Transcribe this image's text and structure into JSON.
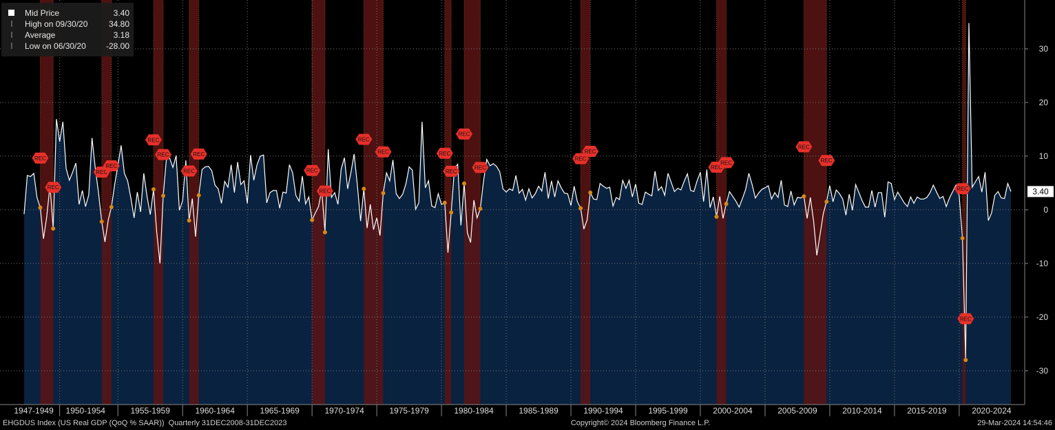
{
  "chart_data": {
    "type": "line",
    "legend": [
      {
        "label": "Mid Price",
        "value": "3.40"
      },
      {
        "label": "High on 09/30/20",
        "value": "34.80"
      },
      {
        "label": "Average",
        "value": "3.18"
      },
      {
        "label": "Low on 06/30/20",
        "value": "-28.00"
      }
    ],
    "footer_left": "EHGDUS Index (US Real GDP (QoQ % SAAR))  Quarterly 31DEC2008-31DEC2023",
    "footer_center": "Copyright© 2024 Bloomberg Finance L.P.",
    "footer_right": "29-Mar-2024 14:54:46",
    "rec_label": "REC",
    "line_color": "#ffffff",
    "area_color": "#0a2442",
    "recession_color": "#5a1414",
    "grid": true,
    "xlim": [
      1945.89,
      2025.06
    ],
    "ylim": [
      -36.3,
      39.1
    ],
    "yticks": [
      -30,
      -20,
      -10,
      0,
      10,
      20,
      30
    ],
    "xticks": [
      {
        "value": 1948.5,
        "label": "1947-1949"
      },
      {
        "value": 1952.5,
        "label": "1950-1954"
      },
      {
        "value": 1957.5,
        "label": "1955-1959"
      },
      {
        "value": 1962.5,
        "label": "1960-1964"
      },
      {
        "value": 1967.5,
        "label": "1965-1969"
      },
      {
        "value": 1972.5,
        "label": "1970-1974"
      },
      {
        "value": 1977.5,
        "label": "1975-1979"
      },
      {
        "value": 1982.5,
        "label": "1980-1984"
      },
      {
        "value": 1987.5,
        "label": "1985-1989"
      },
      {
        "value": 1992.5,
        "label": "1990-1994"
      },
      {
        "value": 1997.5,
        "label": "1995-1999"
      },
      {
        "value": 2002.5,
        "label": "2000-2004"
      },
      {
        "value": 2007.5,
        "label": "2005-2009"
      },
      {
        "value": 2012.5,
        "label": "2010-2014"
      },
      {
        "value": 2017.5,
        "label": "2015-2019"
      },
      {
        "value": 2022.5,
        "label": "2020-2024"
      }
    ],
    "recessions": [
      [
        1949,
        1950
      ],
      [
        1953.75,
        1954.5
      ],
      [
        1957.75,
        1958.5
      ],
      [
        1960.5,
        1961.25
      ],
      [
        1970,
        1971
      ],
      [
        1974,
        1975.5
      ],
      [
        1980.25,
        1980.75
      ],
      [
        1981.75,
        1983
      ],
      [
        1990.75,
        1991.5
      ],
      [
        2001.25,
        2002
      ],
      [
        2008,
        2009.75
      ],
      [
        2020.25,
        2020.5
      ]
    ],
    "x": [
      1947.75,
      1948,
      1948.25,
      1948.5,
      1948.75,
      1949,
      1949.25,
      1949.5,
      1949.75,
      1950,
      1950.25,
      1950.5,
      1950.75,
      1951,
      1951.25,
      1951.5,
      1951.75,
      1952,
      1952.25,
      1952.5,
      1952.75,
      1953,
      1953.25,
      1953.5,
      1953.75,
      1954,
      1954.25,
      1954.5,
      1954.75,
      1955,
      1955.25,
      1955.5,
      1955.75,
      1956,
      1956.25,
      1956.5,
      1956.75,
      1957,
      1957.25,
      1957.5,
      1957.75,
      1958,
      1958.25,
      1958.5,
      1958.75,
      1959,
      1959.25,
      1959.5,
      1959.75,
      1960,
      1960.25,
      1960.5,
      1960.75,
      1961,
      1961.25,
      1961.5,
      1961.75,
      1962,
      1962.25,
      1962.5,
      1962.75,
      1963,
      1963.25,
      1963.5,
      1963.75,
      1964,
      1964.25,
      1964.5,
      1964.75,
      1965,
      1965.25,
      1965.5,
      1965.75,
      1966,
      1966.25,
      1966.5,
      1966.75,
      1967,
      1967.25,
      1967.5,
      1967.75,
      1968,
      1968.25,
      1968.5,
      1968.75,
      1969,
      1969.25,
      1969.5,
      1969.75,
      1970,
      1970.25,
      1970.5,
      1970.75,
      1971,
      1971.25,
      1971.5,
      1971.75,
      1972,
      1972.25,
      1972.5,
      1972.75,
      1973,
      1973.25,
      1973.5,
      1973.75,
      1974,
      1974.25,
      1974.5,
      1974.75,
      1975,
      1975.25,
      1975.5,
      1975.75,
      1976,
      1976.25,
      1976.5,
      1976.75,
      1977,
      1977.25,
      1977.5,
      1977.75,
      1978,
      1978.25,
      1978.5,
      1978.75,
      1979,
      1979.25,
      1979.5,
      1979.75,
      1980,
      1980.25,
      1980.5,
      1980.75,
      1981,
      1981.25,
      1981.5,
      1981.75,
      1982,
      1982.25,
      1982.5,
      1982.75,
      1983,
      1983.25,
      1983.5,
      1983.75,
      1984,
      1984.25,
      1984.5,
      1984.75,
      1985,
      1985.25,
      1985.5,
      1985.75,
      1986,
      1986.25,
      1986.5,
      1986.75,
      1987,
      1987.25,
      1987.5,
      1987.75,
      1988,
      1988.25,
      1988.5,
      1988.75,
      1989,
      1989.25,
      1989.5,
      1989.75,
      1990,
      1990.25,
      1990.5,
      1990.75,
      1991,
      1991.25,
      1991.5,
      1991.75,
      1992,
      1992.25,
      1992.5,
      1992.75,
      1993,
      1993.25,
      1993.5,
      1993.75,
      1994,
      1994.25,
      1994.5,
      1994.75,
      1995,
      1995.25,
      1995.5,
      1995.75,
      1996,
      1996.25,
      1996.5,
      1996.75,
      1997,
      1997.25,
      1997.5,
      1997.75,
      1998,
      1998.25,
      1998.5,
      1998.75,
      1999,
      1999.25,
      1999.5,
      1999.75,
      2000,
      2000.25,
      2000.5,
      2000.75,
      2001,
      2001.25,
      2001.5,
      2001.75,
      2002,
      2002.25,
      2002.5,
      2002.75,
      2003,
      2003.25,
      2003.5,
      2003.75,
      2004,
      2004.25,
      2004.5,
      2004.75,
      2005,
      2005.25,
      2005.5,
      2005.75,
      2006,
      2006.25,
      2006.5,
      2006.75,
      2007,
      2007.25,
      2007.5,
      2007.75,
      2008,
      2008.25,
      2008.5,
      2008.75,
      2009,
      2009.25,
      2009.5,
      2009.75,
      2010,
      2010.25,
      2010.5,
      2010.75,
      2011,
      2011.25,
      2011.5,
      2011.75,
      2012,
      2012.25,
      2012.5,
      2012.75,
      2013,
      2013.25,
      2013.5,
      2013.75,
      2014,
      2014.25,
      2014.5,
      2014.75,
      2015,
      2015.25,
      2015.5,
      2015.75,
      2016,
      2016.25,
      2016.5,
      2016.75,
      2017,
      2017.25,
      2017.5,
      2017.75,
      2018,
      2018.25,
      2018.5,
      2018.75,
      2019,
      2019.25,
      2019.5,
      2019.75,
      2020,
      2020.25,
      2020.5,
      2020.75,
      2021,
      2021.25,
      2021.5,
      2021.75,
      2022,
      2022.25,
      2022.5,
      2022.75,
      2023,
      2023.25,
      2023.5,
      2023.75,
      2024
    ],
    "values": [
      -0.8,
      6.4,
      6.2,
      6.8,
      2.3,
      0.4,
      -5.4,
      -1.3,
      4.5,
      -3.5,
      16.9,
      12.7,
      16.4,
      7.7,
      5.5,
      7.0,
      8.7,
      1.0,
      3.6,
      0.6,
      2.8,
      13.4,
      7.8,
      3.2,
      -2.2,
      -6.0,
      -1.9,
      0.5,
      4.7,
      8.3,
      12.0,
      6.8,
      5.4,
      2.2,
      -1.5,
      3.3,
      -0.4,
      6.8,
      2.5,
      -0.9,
      3.8,
      -4.2,
      -10.0,
      2.6,
      9.6,
      9.6,
      7.9,
      10.1,
      -0.1,
      1.7,
      9.2,
      -2.0,
      2.1,
      -5.0,
      2.7,
      7.5,
      8.0,
      8.1,
      7.3,
      4.6,
      3.9,
      1.2,
      5.3,
      4.2,
      8.4,
      3.2,
      8.9,
      4.7,
      5.4,
      1.2,
      10.2,
      5.5,
      8.4,
      10.0,
      10.2,
      1.3,
      3.2,
      3.6,
      3.6,
      0.3,
      3.3,
      3.1,
      8.4,
      6.9,
      2.7,
      1.6,
      6.3,
      1.1,
      2.4,
      -1.9,
      -0.6,
      0.6,
      3.7,
      -4.2,
      11.3,
      2.3,
      3.2,
      1.0,
      7.6,
      9.7,
      3.9,
      6.9,
      10.4,
      4.6,
      -2.1,
      3.9,
      -3.4,
      1.0,
      -3.7,
      -1.5,
      -4.8,
      3.1,
      6.9,
      5.4,
      9.3,
      3.0,
      2.1,
      2.9,
      4.8,
      8.0,
      7.4,
      0.1,
      1.3,
      16.4,
      4.1,
      5.4,
      0.7,
      0.4,
      3.0,
      1.0,
      1.3,
      -8.0,
      -0.5,
      7.7,
      8.5,
      -2.9,
      4.9,
      -4.3,
      -6.1,
      1.8,
      -1.5,
      0.2,
      5.4,
      9.4,
      8.2,
      8.6,
      8.1,
      7.1,
      3.9,
      3.3,
      3.9,
      3.6,
      6.4,
      3.1,
      3.8,
      1.8,
      3.9,
      2.2,
      3.0,
      4.4,
      3.5,
      7.0,
      2.1,
      5.4,
      2.4,
      5.4,
      4.1,
      3.1,
      3.0,
      0.8,
      4.4,
      1.5,
      0.3,
      -3.6,
      -1.9,
      3.2,
      2.0,
      1.9,
      4.9,
      4.4,
      4.0,
      4.2,
      0.7,
      2.3,
      1.9,
      5.5,
      4.0,
      5.5,
      2.4,
      4.8,
      1.2,
      1.0,
      3.3,
      2.9,
      2.6,
      7.2,
      3.6,
      4.3,
      2.7,
      6.8,
      5.1,
      3.4,
      4.0,
      3.7,
      5.3,
      6.7,
      3.6,
      3.4,
      5.4,
      7.0,
      1.5,
      7.5,
      0.4,
      2.4,
      -1.3,
      2.5,
      -1.6,
      1.1,
      3.4,
      2.5,
      1.6,
      0.5,
      2.1,
      3.8,
      6.8,
      4.7,
      2.2,
      3.1,
      3.8,
      4.1,
      4.5,
      2.0,
      3.2,
      2.3,
      5.5,
      0.9,
      0.6,
      3.5,
      0.9,
      2.3,
      2.2,
      2.5,
      -1.6,
      2.3,
      -2.1,
      -8.5,
      -4.6,
      -0.7,
      1.5,
      4.5,
      1.5,
      3.7,
      3.0,
      2.0,
      -1.0,
      2.9,
      -0.1,
      4.7,
      3.2,
      1.7,
      0.5,
      0.5,
      3.6,
      0.5,
      3.2,
      3.2,
      -1.4,
      5.2,
      4.9,
      1.9,
      3.3,
      2.3,
      1.3,
      0.6,
      2.4,
      1.2,
      2.4,
      2.0,
      2.0,
      2.3,
      3.2,
      4.6,
      3.3,
      2.1,
      2.5,
      0.6,
      2.2,
      3.4,
      4.6,
      2.6,
      -5.3,
      -28.0,
      34.8,
      4.2,
      5.2,
      6.2,
      3.3,
      7.0,
      -2.0,
      -0.6,
      2.7,
      3.4,
      2.2,
      2.1,
      4.9,
      3.4
    ]
  }
}
